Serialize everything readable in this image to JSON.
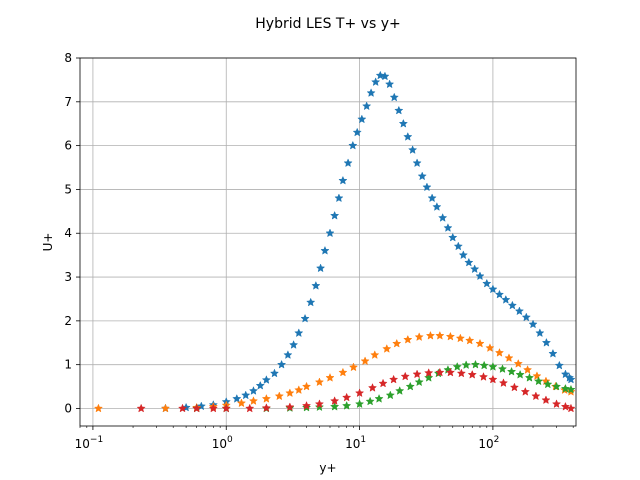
{
  "chart_data": {
    "type": "scatter",
    "title": "Hybrid LES T+ vs y+",
    "xlabel": "y+",
    "ylabel": "U+",
    "xscale": "log",
    "xlim": [
      0.08,
      420
    ],
    "ylim": [
      -0.4,
      8
    ],
    "yticks": [
      0,
      1,
      2,
      3,
      4,
      5,
      6,
      7,
      8
    ],
    "xticks": [
      {
        "value": 0.1,
        "base": "10",
        "exp": "−1"
      },
      {
        "value": 1,
        "base": "10",
        "exp": "0"
      },
      {
        "value": 10,
        "base": "10",
        "exp": "1"
      },
      {
        "value": 100,
        "base": "10",
        "exp": "2"
      }
    ],
    "grid": true,
    "marker": "star",
    "series": [
      {
        "color": "#1f77b4",
        "points": [
          [
            0.35,
            0.0
          ],
          [
            0.5,
            0.02
          ],
          [
            0.65,
            0.05
          ],
          [
            0.8,
            0.08
          ],
          [
            1.0,
            0.15
          ],
          [
            1.2,
            0.22
          ],
          [
            1.4,
            0.3
          ],
          [
            1.6,
            0.4
          ],
          [
            1.8,
            0.52
          ],
          [
            2.0,
            0.65
          ],
          [
            2.3,
            0.8
          ],
          [
            2.6,
            1.0
          ],
          [
            2.9,
            1.22
          ],
          [
            3.2,
            1.45
          ],
          [
            3.5,
            1.72
          ],
          [
            3.9,
            2.05
          ],
          [
            4.3,
            2.42
          ],
          [
            4.7,
            2.8
          ],
          [
            5.1,
            3.2
          ],
          [
            5.5,
            3.6
          ],
          [
            6.0,
            4.0
          ],
          [
            6.5,
            4.4
          ],
          [
            7.0,
            4.8
          ],
          [
            7.5,
            5.2
          ],
          [
            8.2,
            5.6
          ],
          [
            8.9,
            6.0
          ],
          [
            9.6,
            6.3
          ],
          [
            10.4,
            6.6
          ],
          [
            11.3,
            6.9
          ],
          [
            12.2,
            7.2
          ],
          [
            13.2,
            7.45
          ],
          [
            14.3,
            7.6
          ],
          [
            15.5,
            7.58
          ],
          [
            16.8,
            7.4
          ],
          [
            18.2,
            7.1
          ],
          [
            19.7,
            6.8
          ],
          [
            21.3,
            6.5
          ],
          [
            23.0,
            6.2
          ],
          [
            25.0,
            5.9
          ],
          [
            27.0,
            5.6
          ],
          [
            29.5,
            5.3
          ],
          [
            32.0,
            5.05
          ],
          [
            35.0,
            4.8
          ],
          [
            38.0,
            4.6
          ],
          [
            42.0,
            4.35
          ],
          [
            46.0,
            4.12
          ],
          [
            50.0,
            3.9
          ],
          [
            55.0,
            3.7
          ],
          [
            60.0,
            3.5
          ],
          [
            66.0,
            3.33
          ],
          [
            73.0,
            3.18
          ],
          [
            80.0,
            3.02
          ],
          [
            90.0,
            2.85
          ],
          [
            100.0,
            2.72
          ],
          [
            112.0,
            2.6
          ],
          [
            125.0,
            2.48
          ],
          [
            140.0,
            2.35
          ],
          [
            158.0,
            2.22
          ],
          [
            178.0,
            2.08
          ],
          [
            200.0,
            1.92
          ],
          [
            225.0,
            1.72
          ],
          [
            252.0,
            1.5
          ],
          [
            282.0,
            1.25
          ],
          [
            315.0,
            0.98
          ],
          [
            350.0,
            0.78
          ],
          [
            375.0,
            0.7
          ],
          [
            385.0,
            0.66
          ]
        ]
      },
      {
        "color": "#ff7f0e",
        "points": [
          [
            0.11,
            0.0
          ],
          [
            0.35,
            0.0
          ],
          [
            0.6,
            0.02
          ],
          [
            0.8,
            0.04
          ],
          [
            1.0,
            0.07
          ],
          [
            1.3,
            0.12
          ],
          [
            1.6,
            0.17
          ],
          [
            2.0,
            0.22
          ],
          [
            2.5,
            0.28
          ],
          [
            3.0,
            0.35
          ],
          [
            3.5,
            0.42
          ],
          [
            4.0,
            0.5
          ],
          [
            5.0,
            0.6
          ],
          [
            6.0,
            0.7
          ],
          [
            7.5,
            0.82
          ],
          [
            9.0,
            0.94
          ],
          [
            11.0,
            1.08
          ],
          [
            13.0,
            1.22
          ],
          [
            16.0,
            1.36
          ],
          [
            19.0,
            1.48
          ],
          [
            23.0,
            1.57
          ],
          [
            28.0,
            1.63
          ],
          [
            34.0,
            1.66
          ],
          [
            40.0,
            1.66
          ],
          [
            48.0,
            1.64
          ],
          [
            57.0,
            1.6
          ],
          [
            67.0,
            1.55
          ],
          [
            80.0,
            1.48
          ],
          [
            95.0,
            1.38
          ],
          [
            112.0,
            1.27
          ],
          [
            132.0,
            1.15
          ],
          [
            155.0,
            1.02
          ],
          [
            182.0,
            0.88
          ],
          [
            214.0,
            0.74
          ],
          [
            250.0,
            0.62
          ],
          [
            295.0,
            0.5
          ],
          [
            345.0,
            0.42
          ],
          [
            385.0,
            0.38
          ]
        ]
      },
      {
        "color": "#2ca02c",
        "points": [
          [
            0.6,
            0.0
          ],
          [
            1.0,
            0.0
          ],
          [
            2.0,
            0.0
          ],
          [
            3.0,
            0.01
          ],
          [
            4.0,
            0.02
          ],
          [
            5.0,
            0.03
          ],
          [
            6.5,
            0.04
          ],
          [
            8.0,
            0.06
          ],
          [
            10.0,
            0.1
          ],
          [
            12.0,
            0.16
          ],
          [
            14.0,
            0.22
          ],
          [
            17.0,
            0.3
          ],
          [
            20.0,
            0.4
          ],
          [
            24.0,
            0.5
          ],
          [
            28.0,
            0.6
          ],
          [
            33.0,
            0.7
          ],
          [
            39.0,
            0.8
          ],
          [
            46.0,
            0.88
          ],
          [
            54.0,
            0.95
          ],
          [
            63.0,
            0.99
          ],
          [
            74.0,
            1.0
          ],
          [
            86.0,
            0.98
          ],
          [
            100.0,
            0.95
          ],
          [
            118.0,
            0.9
          ],
          [
            138.0,
            0.84
          ],
          [
            160.0,
            0.77
          ],
          [
            188.0,
            0.7
          ],
          [
            220.0,
            0.62
          ],
          [
            258.0,
            0.55
          ],
          [
            300.0,
            0.5
          ],
          [
            350.0,
            0.45
          ],
          [
            385.0,
            0.43
          ]
        ]
      },
      {
        "color": "#d62728",
        "points": [
          [
            0.23,
            0.0
          ],
          [
            0.47,
            0.0
          ],
          [
            0.6,
            0.0
          ],
          [
            0.8,
            0.0
          ],
          [
            1.0,
            0.0
          ],
          [
            1.5,
            0.0
          ],
          [
            2.0,
            0.01
          ],
          [
            3.0,
            0.03
          ],
          [
            4.0,
            0.06
          ],
          [
            5.0,
            0.1
          ],
          [
            6.5,
            0.17
          ],
          [
            8.0,
            0.25
          ],
          [
            10.0,
            0.35
          ],
          [
            12.5,
            0.47
          ],
          [
            15.0,
            0.57
          ],
          [
            18.0,
            0.66
          ],
          [
            22.0,
            0.73
          ],
          [
            27.0,
            0.78
          ],
          [
            33.0,
            0.81
          ],
          [
            40.0,
            0.82
          ],
          [
            48.0,
            0.82
          ],
          [
            58.0,
            0.8
          ],
          [
            70.0,
            0.77
          ],
          [
            85.0,
            0.72
          ],
          [
            100.0,
            0.66
          ],
          [
            120.0,
            0.58
          ],
          [
            145.0,
            0.48
          ],
          [
            175.0,
            0.38
          ],
          [
            210.0,
            0.28
          ],
          [
            250.0,
            0.19
          ],
          [
            300.0,
            0.1
          ],
          [
            350.0,
            0.04
          ],
          [
            385.0,
            0.0
          ]
        ]
      }
    ]
  }
}
